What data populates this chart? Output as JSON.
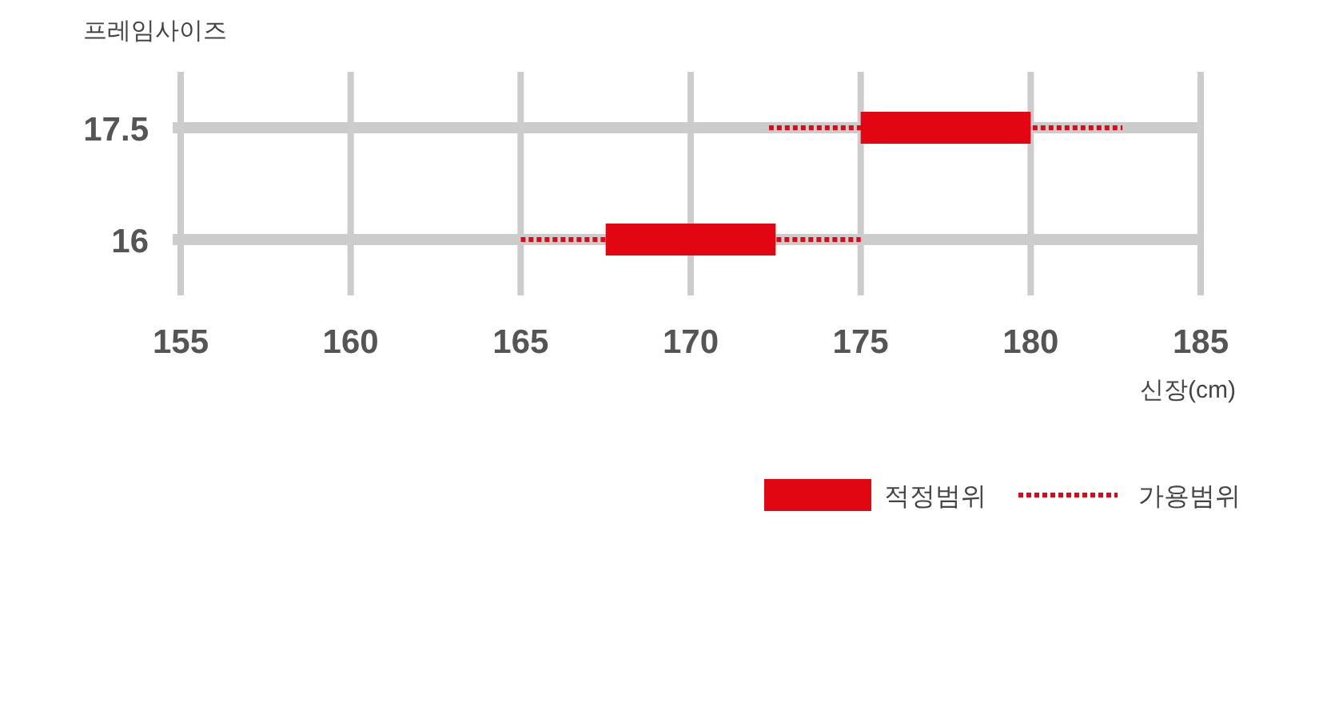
{
  "chart_data": {
    "type": "bar",
    "orientation": "horizontal",
    "ylabel": "프레임사이즈",
    "xlabel": "신장(cm)",
    "categories": [
      "17.5",
      "16"
    ],
    "series": [
      {
        "name": "적정범위",
        "color": "#e20613",
        "values": [
          5,
          5
        ],
        "base": [
          175,
          167.5
        ]
      },
      {
        "name": "가용범위",
        "color": "#e20613",
        "values": [
          10.4,
          10
        ],
        "base": [
          172.3,
          165
        ],
        "line_style": "dotted"
      }
    ],
    "xlim": [
      155,
      185
    ],
    "xticks": [
      155,
      160,
      165,
      170,
      175,
      180,
      185
    ],
    "grid": true,
    "legend": "bottom right"
  }
}
